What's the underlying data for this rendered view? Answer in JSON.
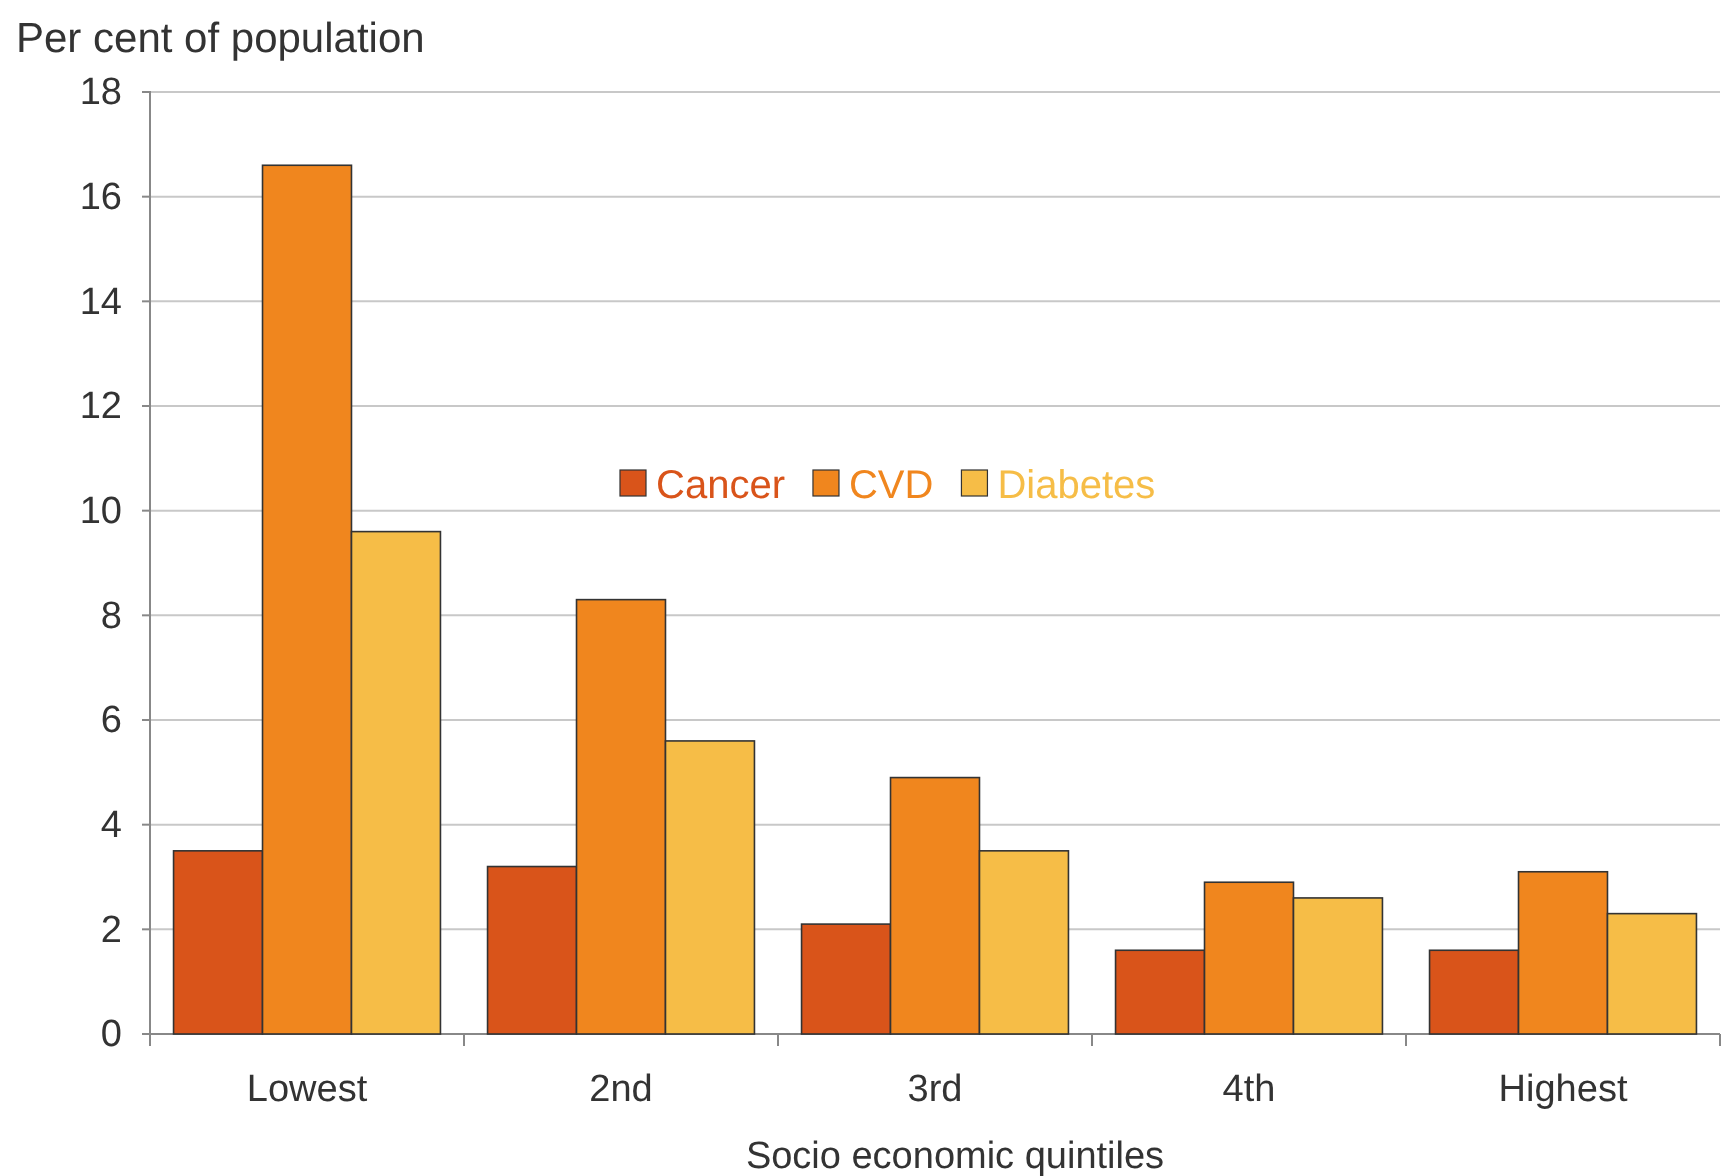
{
  "chart_data": {
    "type": "bar",
    "ylabel": "Per cent of population",
    "xlabel": "Socio economic quintiles",
    "categories": [
      "Lowest",
      "2nd",
      "3rd",
      "4th",
      "Highest"
    ],
    "series": [
      {
        "name": "Cancer",
        "color": "#d9541a",
        "values": [
          3.5,
          3.2,
          2.1,
          1.6,
          1.6
        ]
      },
      {
        "name": "CVD",
        "color": "#f0861e",
        "values": [
          16.6,
          8.3,
          4.9,
          2.9,
          3.1
        ]
      },
      {
        "name": "Diabetes",
        "color": "#f6bd47",
        "values": [
          9.6,
          5.6,
          3.5,
          2.6,
          2.3
        ]
      }
    ],
    "ylim": [
      0,
      18
    ],
    "yticks": [
      0,
      2,
      4,
      6,
      8,
      10,
      12,
      14,
      16,
      18
    ],
    "grid": "y",
    "legend": "center"
  }
}
